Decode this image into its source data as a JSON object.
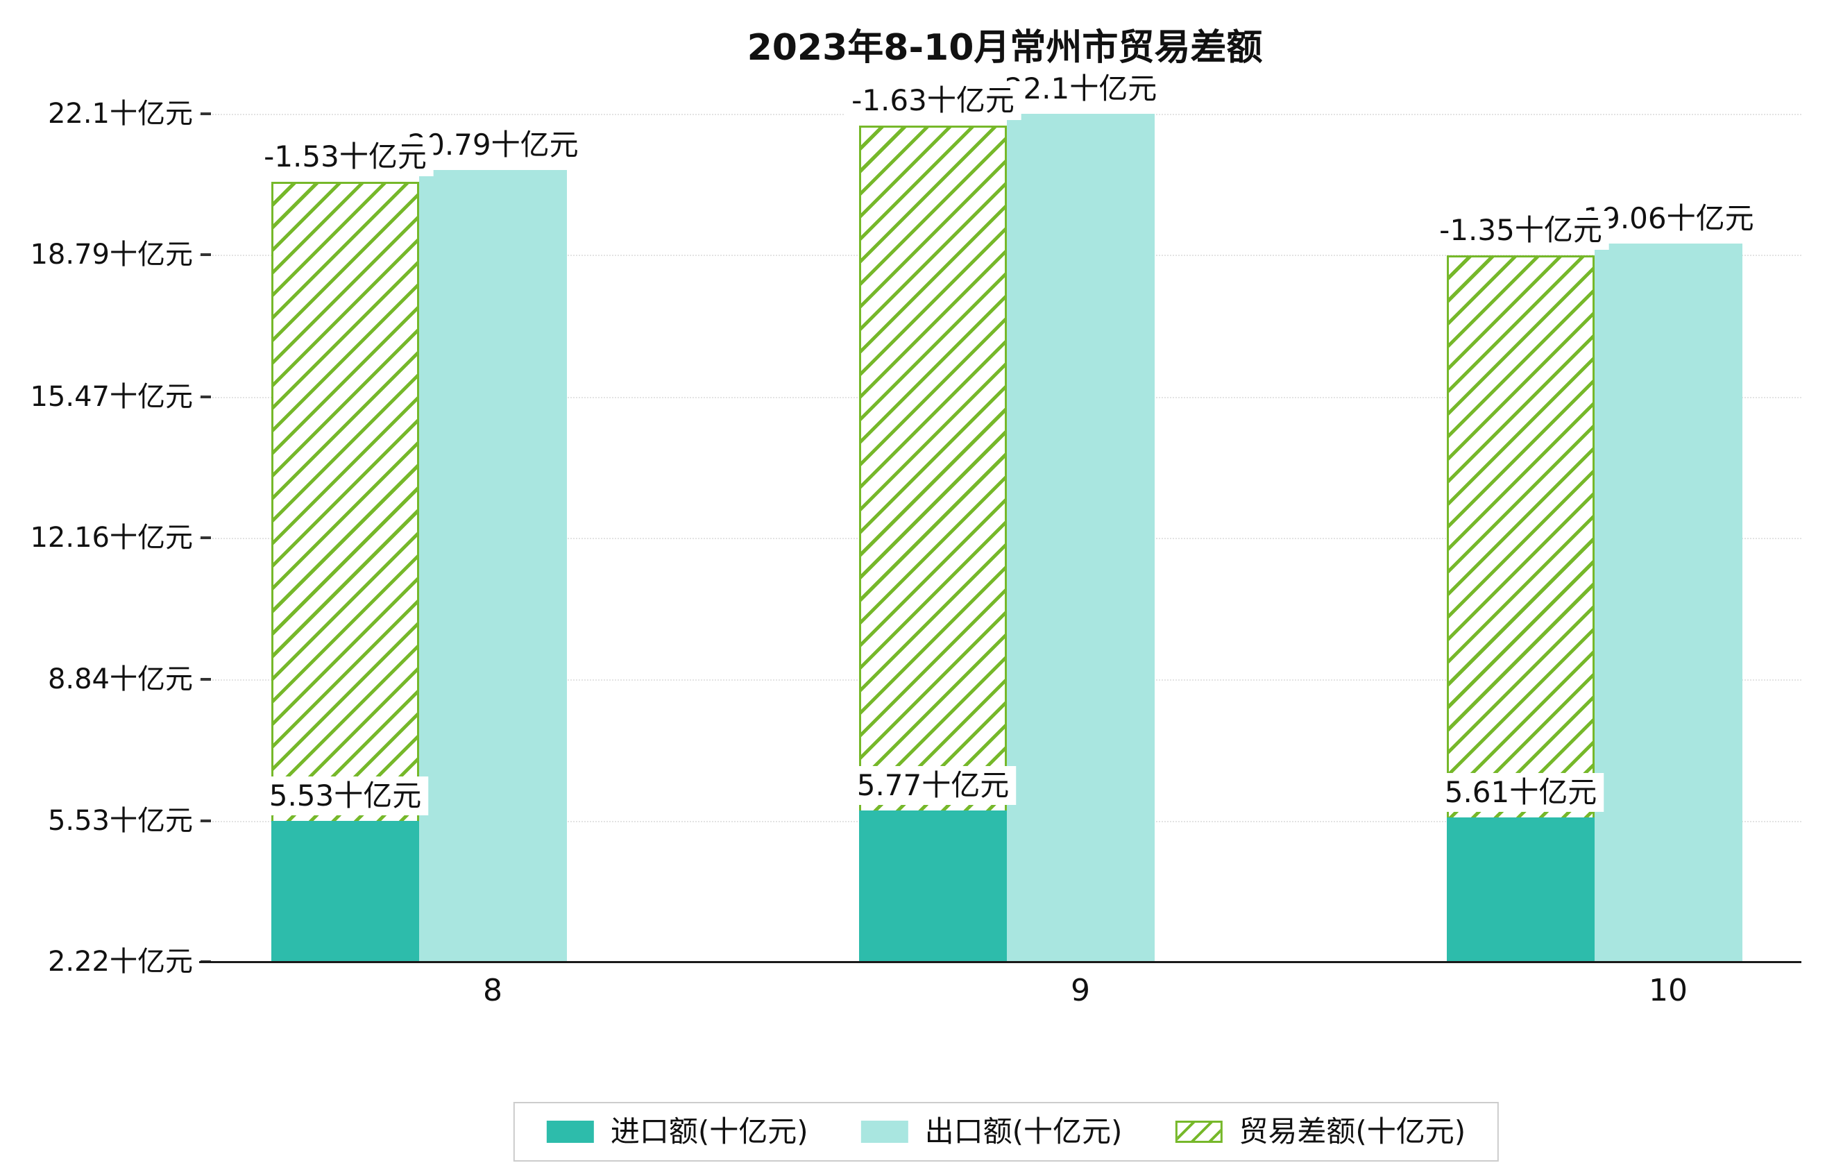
{
  "title": "2023年8-10月常州市贸易差额",
  "chart_data": {
    "type": "bar",
    "title": "2023年8-10月常州市贸易差额",
    "categories": [
      "8",
      "9",
      "10"
    ],
    "unit": "十亿元",
    "series": [
      {
        "name": "进口额(十亿元)",
        "key": "imports",
        "values": [
          5.53,
          5.77,
          5.61
        ],
        "labels": [
          "5.53十亿元",
          "5.77十亿元",
          "5.61十亿元"
        ],
        "color": "#2dbcab",
        "style": "solid"
      },
      {
        "name": "出口额(十亿元)",
        "key": "exports",
        "values": [
          20.79,
          22.1,
          19.06
        ],
        "labels": [
          "20.79十亿元",
          "22.1十亿元",
          "19.06十亿元"
        ],
        "color": "#a9e6e0",
        "style": "solid"
      },
      {
        "name": "贸易差额(十亿元)",
        "key": "balance",
        "values": [
          -1.53,
          -1.63,
          -1.35
        ],
        "labels": [
          "-1.53十亿元",
          "-1.63十亿元",
          "-1.35十亿元"
        ],
        "color": "#76b82a",
        "style": "hatched"
      }
    ],
    "y_tick_values": [
      2.22,
      5.53,
      8.84,
      12.16,
      15.47,
      18.79,
      22.1
    ],
    "y_tick_labels": [
      "2.22十亿元",
      "5.53十亿元",
      "8.84十亿元",
      "12.16十亿元",
      "15.47十亿元",
      "18.79十亿元",
      "22.1十亿元"
    ],
    "ylim": [
      2.22,
      22.1
    ],
    "xlabel": "",
    "ylabel": "",
    "grid": "dotted-horizontal",
    "legend_position": "bottom",
    "hatched_bar_drawn_tops": [
      20.51,
      21.82,
      18.78
    ]
  }
}
